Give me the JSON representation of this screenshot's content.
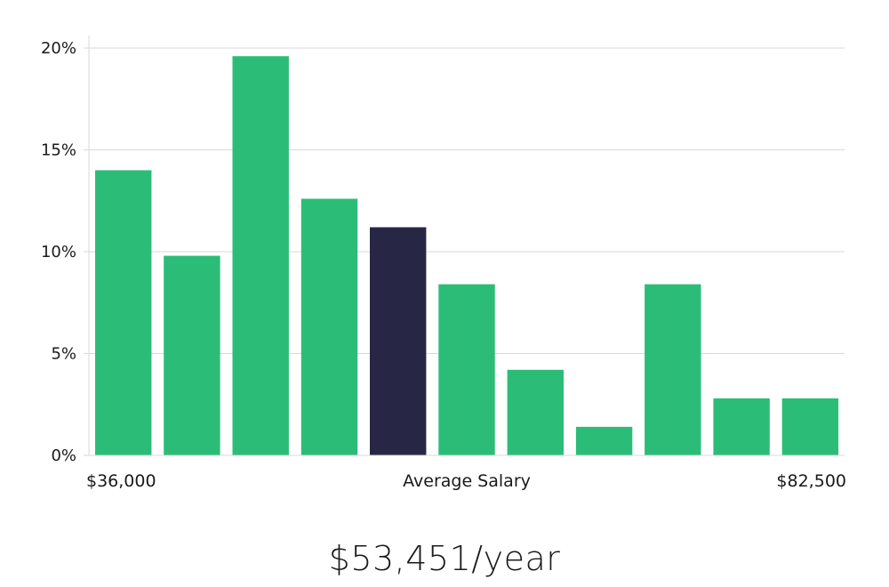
{
  "chart_data": {
    "type": "bar",
    "categories": [
      "",
      "",
      "",
      "",
      "",
      "",
      "",
      "",
      "",
      "",
      ""
    ],
    "values": [
      14.0,
      9.8,
      19.6,
      12.6,
      11.2,
      8.4,
      4.2,
      1.4,
      8.4,
      2.8,
      2.8
    ],
    "highlight_index": 4,
    "ylim": [
      0,
      20
    ],
    "yticks": [
      0,
      5,
      10,
      15,
      20
    ],
    "ytick_format": "%",
    "x_left_label": "$36,000",
    "x_center_label": "Average Salary",
    "x_right_label": "$82,500",
    "grid": true,
    "colors": {
      "bar": "#2bbd77",
      "highlight": "#282645",
      "grid": "#d9d9d9",
      "axis": "#d9d9d9"
    }
  },
  "summary": {
    "average_salary": "$53,451/year"
  }
}
